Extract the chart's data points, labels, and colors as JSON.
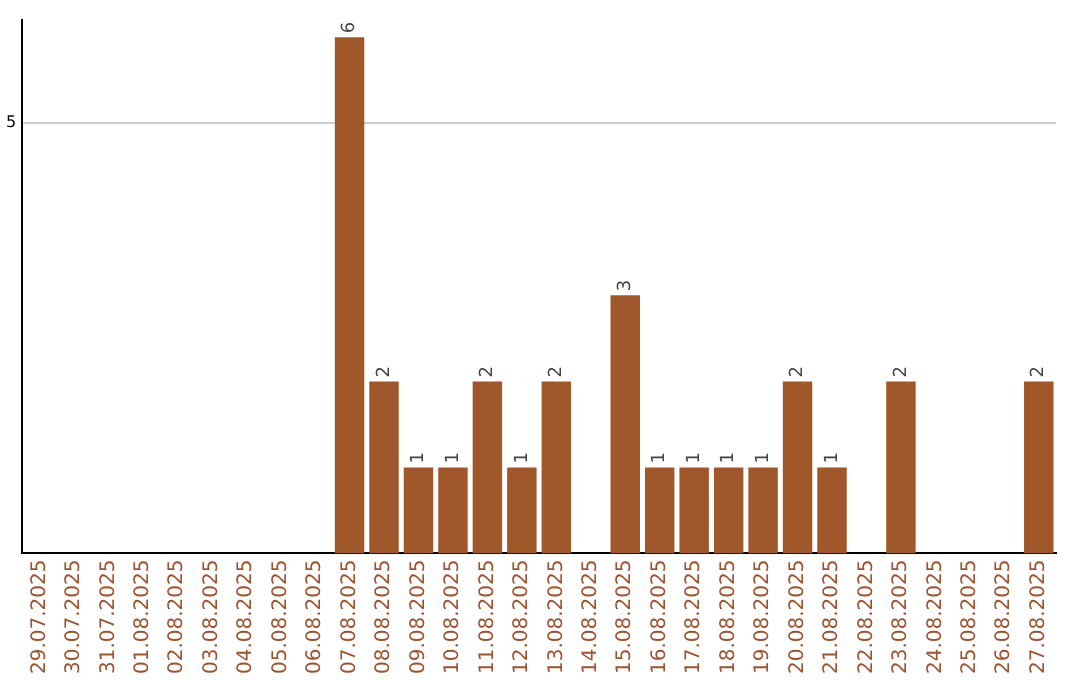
{
  "chart_data": {
    "type": "bar",
    "categories": [
      "29.07.2025",
      "30.07.2025",
      "31.07.2025",
      "01.08.2025",
      "02.08.2025",
      "03.08.2025",
      "04.08.2025",
      "05.08.2025",
      "06.08.2025",
      "07.08.2025",
      "08.08.2025",
      "09.08.2025",
      "10.08.2025",
      "11.08.2025",
      "12.08.2025",
      "13.08.2025",
      "14.08.2025",
      "15.08.2025",
      "16.08.2025",
      "17.08.2025",
      "18.08.2025",
      "19.08.2025",
      "20.08.2025",
      "21.08.2025",
      "22.08.2025",
      "23.08.2025",
      "24.08.2025",
      "25.08.2025",
      "26.08.2025",
      "27.08.2025"
    ],
    "values": [
      null,
      null,
      null,
      null,
      null,
      null,
      null,
      null,
      null,
      6,
      2,
      1,
      1,
      2,
      1,
      2,
      null,
      3,
      1,
      1,
      1,
      1,
      2,
      1,
      null,
      2,
      null,
      null,
      null,
      2
    ],
    "color": "#a0582a",
    "ylim": [
      0,
      6.2
    ],
    "yticks": [
      5
    ],
    "grid": "y",
    "data_labels": true,
    "legend": false
  }
}
